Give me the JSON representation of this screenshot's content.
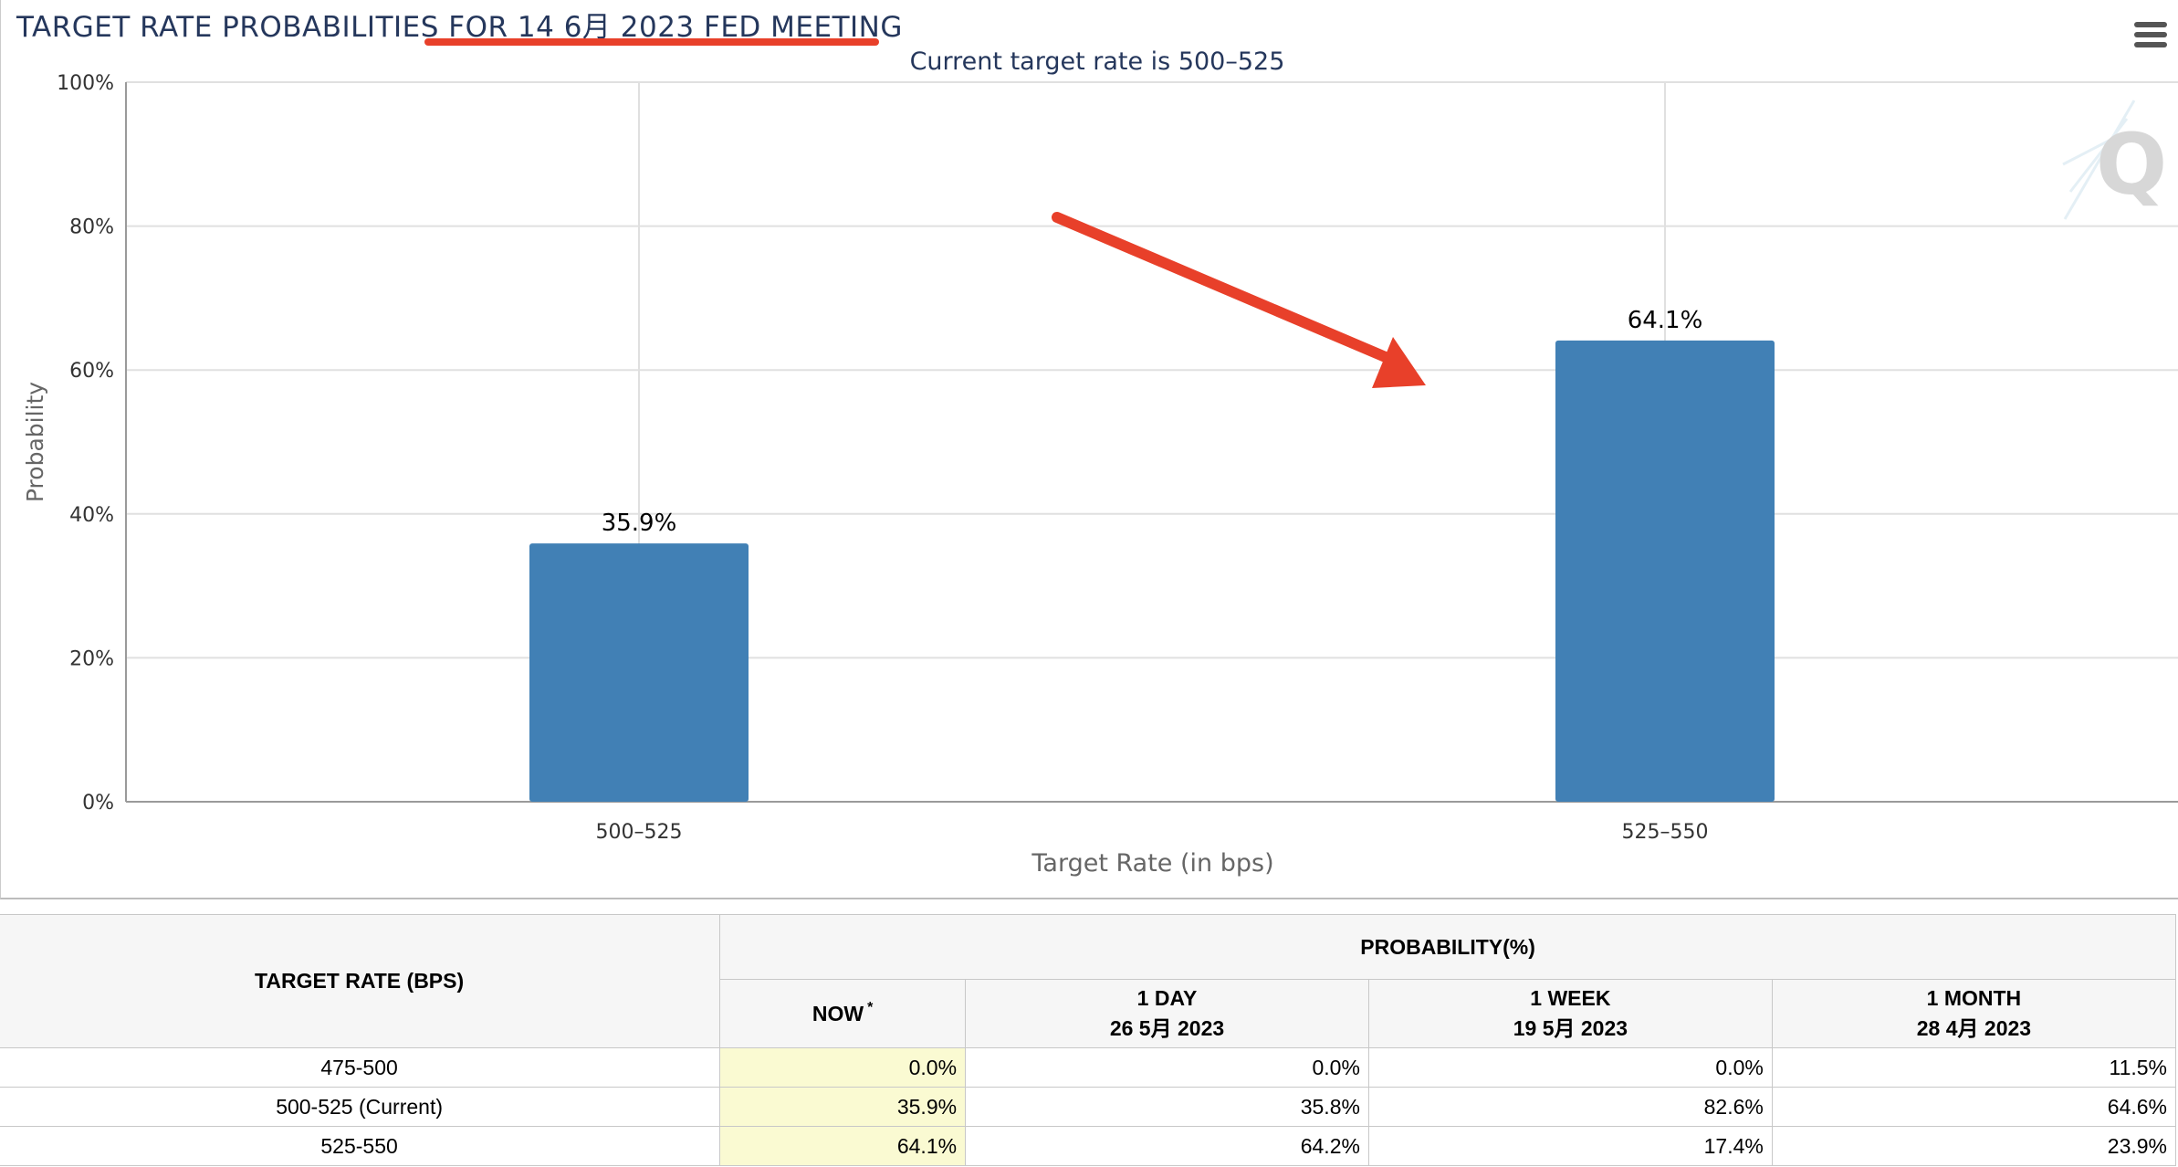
{
  "header": {
    "title": "TARGET RATE PROBABILITIES FOR 14 6月 2023 FED MEETING",
    "subtitle": "Current target rate is 500–525",
    "menu_icon": "hamburger-menu-icon",
    "watermark_icon": "quikstrike-q-logo-icon",
    "annotation_color": "#e8402a"
  },
  "chart_data": {
    "type": "bar",
    "categories": [
      "500–525",
      "525–550"
    ],
    "values": [
      35.9,
      64.1
    ],
    "data_labels": [
      "35.9%",
      "64.1%"
    ],
    "title": "",
    "xlabel": "Target Rate (in bps)",
    "ylabel": "Probability",
    "ylim": [
      0,
      100
    ],
    "yticks": [
      "0%",
      "20%",
      "40%",
      "60%",
      "80%",
      "100%"
    ],
    "bar_color": "#4180b5",
    "grid": true
  },
  "table": {
    "rate_header": "TARGET RATE (BPS)",
    "prob_header": "PROBABILITY(%)",
    "columns": [
      {
        "label": "NOW",
        "sup": "*",
        "date": ""
      },
      {
        "label": "1 DAY",
        "date": "26 5月 2023"
      },
      {
        "label": "1 WEEK",
        "date": "19 5月 2023"
      },
      {
        "label": "1 MONTH",
        "date": "28 4月 2023"
      }
    ],
    "rows": [
      {
        "rate": "475-500",
        "values": [
          "0.0%",
          "0.0%",
          "0.0%",
          "11.5%"
        ]
      },
      {
        "rate": "500-525 (Current)",
        "values": [
          "35.9%",
          "35.8%",
          "82.6%",
          "64.6%"
        ]
      },
      {
        "rate": "525-550",
        "values": [
          "64.1%",
          "64.2%",
          "17.4%",
          "23.9%"
        ]
      }
    ]
  }
}
